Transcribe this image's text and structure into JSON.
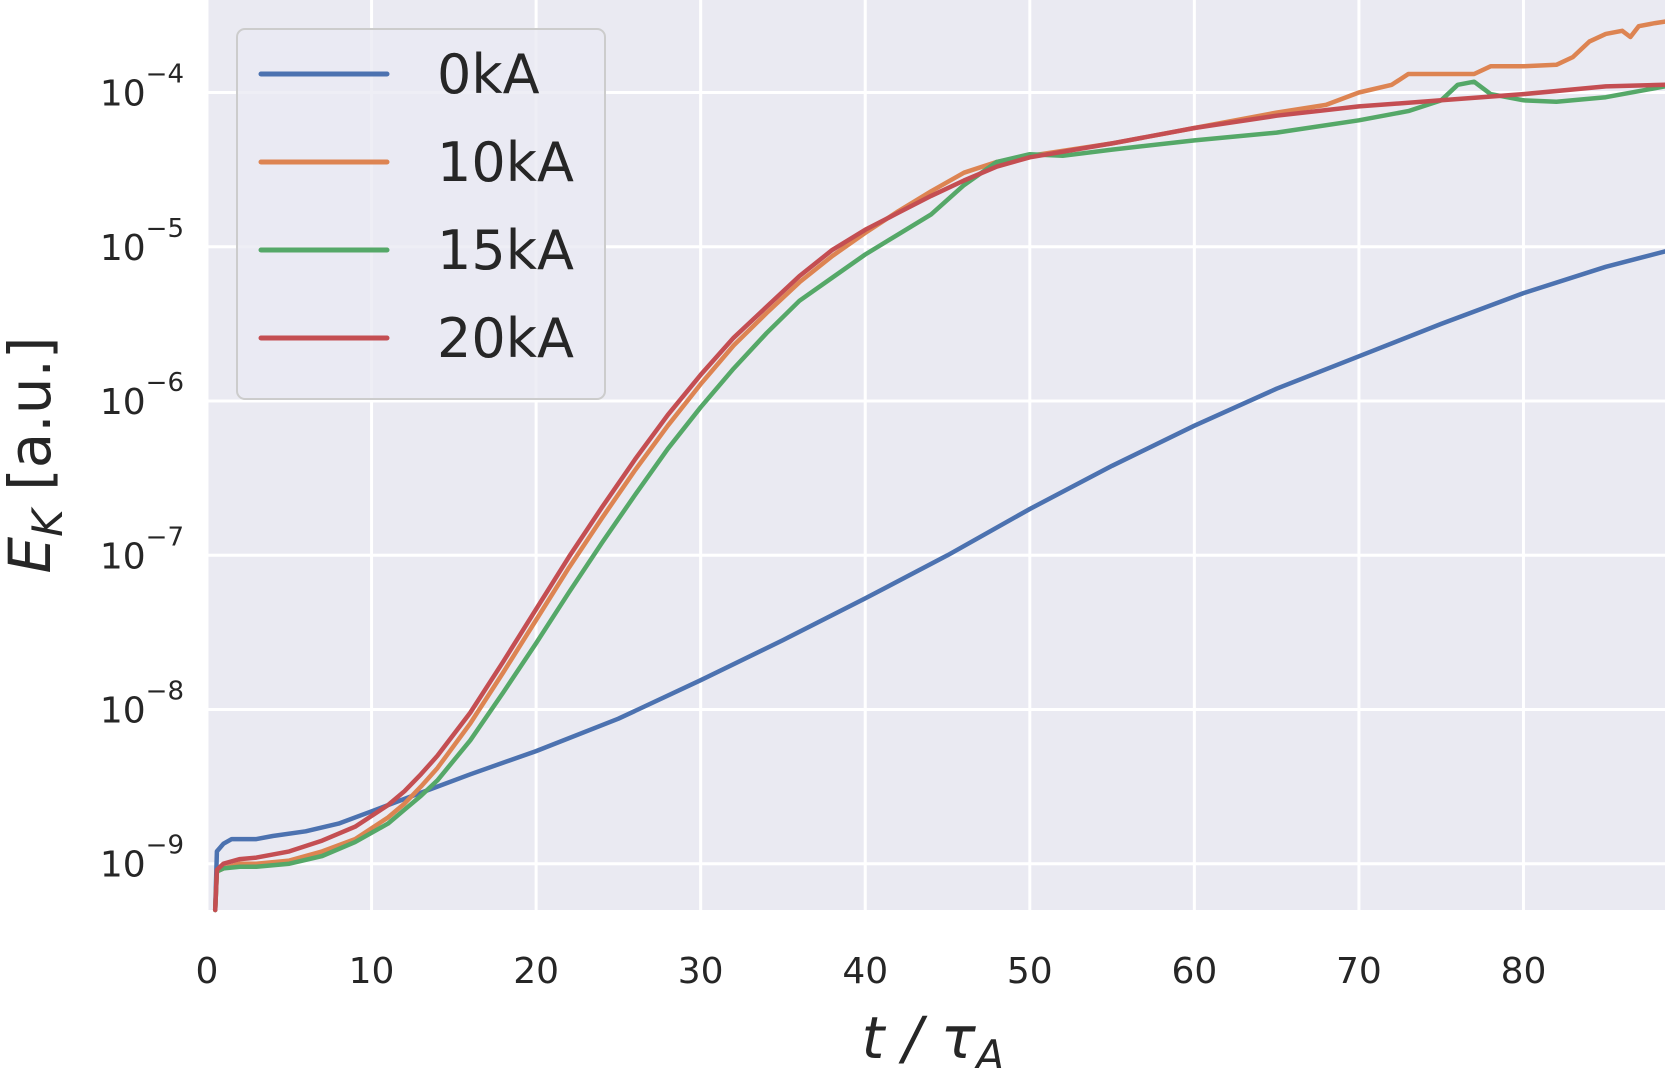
{
  "chart_data": {
    "type": "line",
    "title": "",
    "xlabel": "t / τ_A",
    "xlabel_main": "t / τ",
    "xlabel_sub": "A",
    "ylabel": "E_K [a.u.]",
    "ylabel_main": "E",
    "ylabel_sub": "K",
    "ylabel_rest": " [a.u.]",
    "xscale": "linear",
    "yscale": "log",
    "xlim": [
      0,
      88.6
    ],
    "ylim_log10": [
      -9.3,
      -3.4
    ],
    "x_ticks": [
      0,
      10,
      20,
      30,
      40,
      50,
      60,
      70,
      80
    ],
    "x_tick_labels": [
      "0",
      "10",
      "20",
      "30",
      "40",
      "50",
      "60",
      "70",
      "80"
    ],
    "y_ticks_log10": [
      -9,
      -8,
      -7,
      -6,
      -5,
      -4
    ],
    "y_tick_base": "10",
    "y_tick_exponents": [
      "−9",
      "−8",
      "−7",
      "−6",
      "−5",
      "−4"
    ],
    "grid": true,
    "legend_position": "top-left",
    "series": [
      {
        "name": "0kA",
        "color": "#4c72b0",
        "x": [
          0.5,
          0.6,
          1,
          1.5,
          2,
          3,
          4,
          6,
          8,
          10,
          12,
          14,
          16,
          20,
          25,
          30,
          35,
          40,
          45,
          50,
          55,
          60,
          65,
          70,
          75,
          80,
          85,
          88.6
        ],
        "log10_y": [
          -9.3,
          -8.92,
          -8.87,
          -8.84,
          -8.84,
          -8.84,
          -8.82,
          -8.79,
          -8.74,
          -8.66,
          -8.58,
          -8.5,
          -8.42,
          -8.27,
          -8.06,
          -7.81,
          -7.55,
          -7.28,
          -7.0,
          -6.7,
          -6.42,
          -6.16,
          -5.92,
          -5.71,
          -5.5,
          -5.3,
          -5.13,
          -5.03
        ]
      },
      {
        "name": "10kA",
        "color": "#dd8452",
        "x": [
          0.5,
          0.6,
          1,
          2,
          3,
          5,
          7,
          9,
          11,
          12,
          13,
          14,
          16,
          18,
          20,
          22,
          24,
          26,
          28,
          30,
          32,
          34,
          36,
          38,
          40,
          42,
          44,
          46,
          48,
          50,
          55,
          60,
          65,
          68,
          70,
          72,
          73,
          75,
          77,
          78,
          80,
          82,
          83,
          84,
          85,
          86,
          86.5,
          87,
          88,
          88.6
        ],
        "log10_y": [
          -9.3,
          -9.05,
          -9.03,
          -9.0,
          -9.0,
          -8.98,
          -8.92,
          -8.84,
          -8.7,
          -8.61,
          -8.5,
          -8.38,
          -8.09,
          -7.76,
          -7.42,
          -7.08,
          -6.76,
          -6.45,
          -6.16,
          -5.89,
          -5.64,
          -5.43,
          -5.23,
          -5.06,
          -4.91,
          -4.77,
          -4.64,
          -4.52,
          -4.45,
          -4.41,
          -4.33,
          -4.23,
          -4.13,
          -4.08,
          -4.0,
          -3.95,
          -3.88,
          -3.88,
          -3.88,
          -3.83,
          -3.83,
          -3.82,
          -3.77,
          -3.67,
          -3.62,
          -3.6,
          -3.64,
          -3.57,
          -3.55,
          -3.54
        ]
      },
      {
        "name": "15kA",
        "color": "#55a868",
        "x": [
          0.5,
          0.6,
          1,
          2,
          3,
          5,
          7,
          9,
          11,
          12,
          13,
          14,
          16,
          18,
          20,
          22,
          24,
          26,
          28,
          30,
          32,
          34,
          36,
          38,
          40,
          42,
          44,
          46,
          48,
          50,
          52,
          55,
          60,
          65,
          70,
          73,
          75,
          76,
          77,
          78,
          80,
          82,
          85,
          88.6
        ],
        "log10_y": [
          -9.3,
          -9.05,
          -9.03,
          -9.02,
          -9.02,
          -9.0,
          -8.95,
          -8.86,
          -8.74,
          -8.65,
          -8.56,
          -8.46,
          -8.2,
          -7.89,
          -7.57,
          -7.24,
          -6.92,
          -6.61,
          -6.31,
          -6.04,
          -5.79,
          -5.56,
          -5.35,
          -5.2,
          -5.05,
          -4.92,
          -4.79,
          -4.6,
          -4.45,
          -4.4,
          -4.41,
          -4.37,
          -4.31,
          -4.26,
          -4.18,
          -4.12,
          -4.05,
          -3.95,
          -3.93,
          -4.01,
          -4.05,
          -4.06,
          -4.03,
          -3.96
        ]
      },
      {
        "name": "20kA",
        "color": "#c44e52",
        "x": [
          0.5,
          0.6,
          1,
          2,
          3,
          5,
          7,
          9,
          11,
          12,
          13,
          14,
          16,
          18,
          20,
          22,
          24,
          26,
          28,
          30,
          32,
          34,
          36,
          38,
          40,
          42,
          44,
          46,
          48,
          50,
          55,
          60,
          65,
          70,
          75,
          80,
          85,
          88.6
        ],
        "log10_y": [
          -9.3,
          -9.04,
          -9.0,
          -8.97,
          -8.96,
          -8.92,
          -8.85,
          -8.76,
          -8.62,
          -8.53,
          -8.42,
          -8.3,
          -8.02,
          -7.69,
          -7.35,
          -7.01,
          -6.69,
          -6.38,
          -6.09,
          -5.83,
          -5.59,
          -5.39,
          -5.19,
          -5.02,
          -4.89,
          -4.78,
          -4.67,
          -4.57,
          -4.48,
          -4.42,
          -4.33,
          -4.23,
          -4.15,
          -4.09,
          -4.05,
          -4.01,
          -3.96,
          -3.95
        ]
      }
    ]
  }
}
